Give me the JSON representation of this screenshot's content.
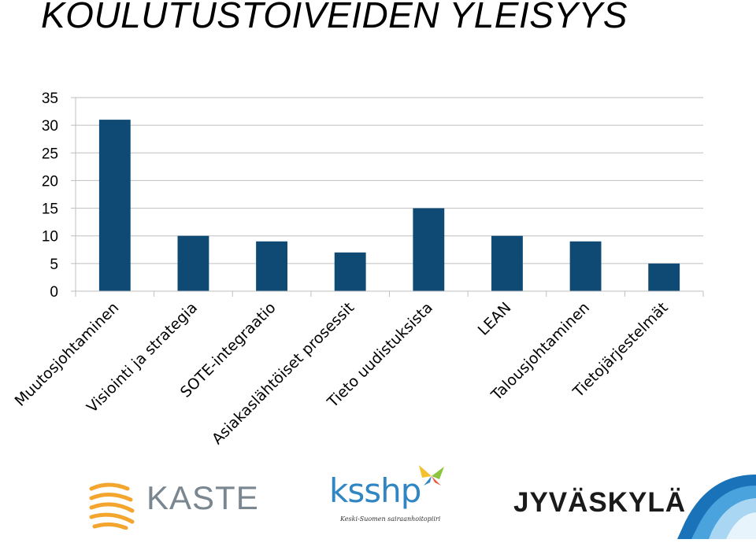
{
  "title": "KOULUTUSTOIVEIDEN YLEISYYS",
  "chart_data": {
    "type": "bar",
    "categories": [
      "Muutosjohtaminen",
      "Visiointi ja strategia",
      "SOTE-integraatio",
      "Asiakaslähtöiset prosessit",
      "Tieto uudistuksista",
      "LEAN",
      "Talousjohtaminen",
      "Tietojärjestelmät"
    ],
    "values": [
      31,
      10,
      9,
      7,
      15,
      10,
      9,
      5
    ],
    "ylim": [
      0,
      35
    ],
    "yticks": [
      0,
      5,
      10,
      15,
      20,
      25,
      30,
      35
    ],
    "grid": true,
    "legend": "none",
    "bar_color": "#0e4a73",
    "grid_color": "#bfbfbf",
    "axis_color": "#bfbfbf"
  },
  "footer": {
    "kaste": "KASTE",
    "ksshp": "ksshp",
    "ksshp_subtitle": "Keski-Suomen sairaanhoitopiiri",
    "jyvaskyla": "JYVÄSKYLÄ",
    "kaste_color": "#f3a52e",
    "ksshp_color": "#2f86c2",
    "wave_color": "#1a73b8"
  }
}
